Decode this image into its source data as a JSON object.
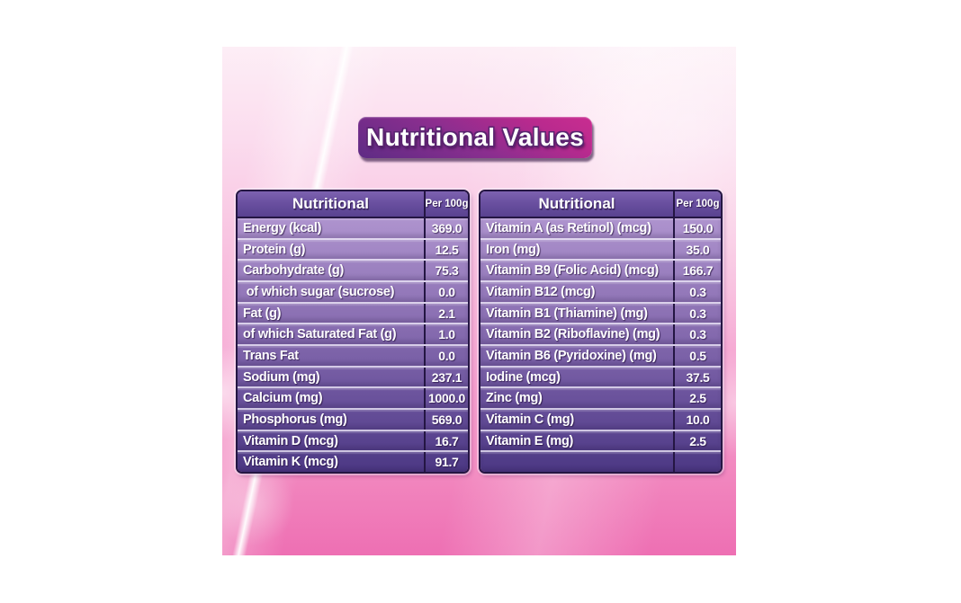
{
  "title_banner": {
    "text": "Nutritional Values"
  },
  "tables": {
    "left": {
      "header": {
        "name_col": "Nutritional",
        "value_col": "Per 100g"
      },
      "rows": [
        {
          "label": "Energy (kcal)",
          "value": "369.0"
        },
        {
          "label": "Protein (g)",
          "value": "12.5"
        },
        {
          "label": "Carbohydrate (g)",
          "value": "75.3"
        },
        {
          "label": " of which sugar (sucrose)",
          "value": "0.0"
        },
        {
          "label": "Fat (g)",
          "value": "2.1"
        },
        {
          "label": "of which Saturated Fat (g)",
          "value": "1.0"
        },
        {
          "label": "Trans Fat",
          "value": "0.0"
        },
        {
          "label": "Sodium (mg)",
          "value": "237.1"
        },
        {
          "label": "Calcium (mg)",
          "value": "1000.0"
        },
        {
          "label": "Phosphorus (mg)",
          "value": "569.0"
        },
        {
          "label": "Vitamin D (mcg)",
          "value": "16.7"
        },
        {
          "label": "Vitamin K (mcg)",
          "value": "91.7"
        }
      ]
    },
    "right": {
      "header": {
        "name_col": "Nutritional",
        "value_col": "Per 100g"
      },
      "rows": [
        {
          "label": "Vitamin A (as Retinol) (mcg)",
          "value": "150.0"
        },
        {
          "label": "Iron (mg)",
          "value": "35.0"
        },
        {
          "label": "Vitamin B9 (Folic Acid) (mcg)",
          "value": "166.7"
        },
        {
          "label": "Vitamin B12 (mcg)",
          "value": "0.3"
        },
        {
          "label": "Vitamin B1 (Thiamine) (mg)",
          "value": "0.3"
        },
        {
          "label": "Vitamin B2 (Riboflavine) (mg)",
          "value": "0.3"
        },
        {
          "label": "Vitamin B6 (Pyridoxine) (mg)",
          "value": "0.5"
        },
        {
          "label": "Iodine (mcg)",
          "value": "37.5"
        },
        {
          "label": "Zinc (mg)",
          "value": "2.5"
        },
        {
          "label": "Vitamin C (mg)",
          "value": "10.0"
        },
        {
          "label": "Vitamin E (mg)",
          "value": "2.5"
        },
        {
          "label": "",
          "value": ""
        }
      ]
    }
  },
  "colors": {
    "panel_pink_top": "#fdeef6",
    "panel_pink_bottom": "#ee6fb3",
    "banner_purple": "#5e2b84",
    "banner_magenta": "#c92d90",
    "table_border_dark": "#241643",
    "table_body_top": "#ae93ce",
    "table_body_bottom": "#4c3884",
    "header_purple": "#6a50a0",
    "text_white": "#ffffff"
  }
}
